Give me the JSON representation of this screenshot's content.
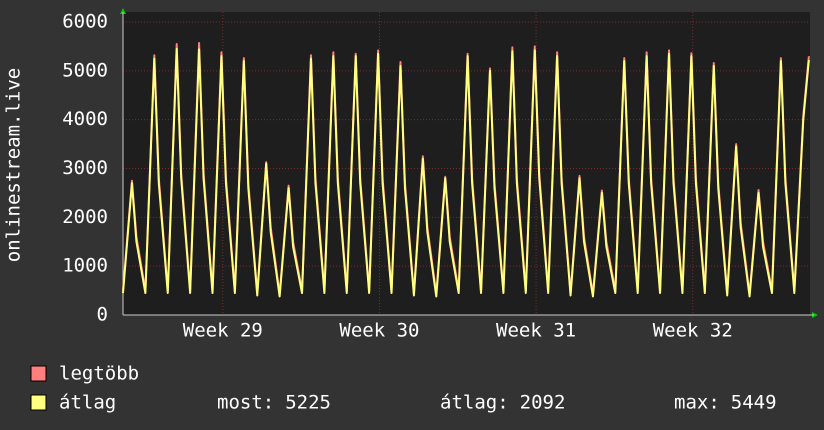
{
  "chart_data": {
    "type": "line",
    "ylabel": "onlinestream.live",
    "x": [
      0,
      0.4,
      0.6,
      1,
      1.4,
      1.6,
      2,
      2.4,
      2.6,
      3,
      3.4,
      3.6,
      4,
      4.4,
      4.6,
      5,
      5.4,
      5.6,
      6,
      6.4,
      6.6,
      7,
      7.4,
      7.6,
      8,
      8.4,
      8.6,
      9,
      9.4,
      9.6,
      10,
      10.4,
      10.6,
      11,
      11.4,
      11.6,
      12,
      12.4,
      12.6,
      13,
      13.4,
      13.6,
      14,
      14.4,
      14.6,
      15,
      15.4,
      15.6,
      16,
      16.4,
      16.6,
      17,
      17.4,
      17.6,
      18,
      18.4,
      18.6,
      19,
      19.4,
      19.6,
      20,
      20.4,
      20.6,
      21,
      21.4,
      21.6,
      22,
      22.4,
      22.6,
      23,
      23.4,
      23.6,
      24,
      24.4,
      24.6,
      25,
      25.4,
      25.6,
      26,
      26.4,
      26.6,
      27,
      27.4,
      27.6,
      28,
      28.4,
      28.6,
      29,
      29.4,
      29.6,
      30,
      30.4,
      30.65
    ],
    "series": [
      {
        "name": "legtöbb",
        "color": "#ff7f7f",
        "values": [
          500,
          2750,
          1600,
          500,
          5320,
          2800,
          500,
          5550,
          2900,
          500,
          5570,
          2900,
          500,
          5380,
          2800,
          500,
          5260,
          2700,
          450,
          3130,
          1800,
          430,
          2650,
          1500,
          500,
          5320,
          2800,
          500,
          5380,
          2800,
          500,
          5350,
          2800,
          500,
          5420,
          2800,
          500,
          5180,
          2700,
          450,
          3250,
          1800,
          430,
          2830,
          1600,
          500,
          5350,
          2800,
          500,
          5050,
          2700,
          500,
          5480,
          2800,
          500,
          5500,
          2900,
          500,
          5380,
          2800,
          450,
          2850,
          1600,
          430,
          2550,
          1500,
          500,
          5260,
          2800,
          500,
          5380,
          2800,
          500,
          5420,
          2800,
          500,
          5360,
          2800,
          500,
          5160,
          2700,
          450,
          3500,
          1900,
          430,
          2560,
          1500,
          500,
          5260,
          2800,
          500,
          4080,
          5300
        ]
      },
      {
        "name": "átlag",
        "color": "#ffff80",
        "values": [
          450,
          2700,
          1500,
          450,
          5250,
          2700,
          450,
          5449,
          2800,
          450,
          5440,
          2800,
          450,
          5300,
          2700,
          450,
          5200,
          2600,
          400,
          3100,
          1700,
          380,
          2600,
          1400,
          450,
          5250,
          2700,
          450,
          5300,
          2700,
          450,
          5300,
          2700,
          450,
          5350,
          2700,
          450,
          5100,
          2600,
          400,
          3200,
          1700,
          380,
          2800,
          1500,
          450,
          5300,
          2700,
          450,
          5000,
          2600,
          450,
          5400,
          2700,
          450,
          5420,
          2800,
          450,
          5300,
          2700,
          400,
          2800,
          1500,
          380,
          2500,
          1400,
          450,
          5200,
          2700,
          450,
          5300,
          2700,
          450,
          5350,
          2700,
          450,
          5300,
          2700,
          450,
          5100,
          2600,
          400,
          3450,
          1800,
          380,
          2500,
          1400,
          450,
          5200,
          2700,
          450,
          4000,
          5225
        ]
      }
    ],
    "xlim": [
      0,
      30.7
    ],
    "xticks": [
      {
        "value": 4.46,
        "label": "Week 29"
      },
      {
        "value": 11.46,
        "label": "Week 30"
      },
      {
        "value": 18.46,
        "label": "Week 31"
      },
      {
        "value": 25.46,
        "label": "Week 32"
      }
    ],
    "ylim": [
      0,
      6000
    ],
    "yticks": [
      0,
      1000,
      2000,
      3000,
      4000,
      5000,
      6000
    ],
    "grid": true,
    "stats": [
      {
        "label": "most:",
        "value": 5225
      },
      {
        "label": "átlag:",
        "value": 2092
      },
      {
        "label": "max:",
        "value": 5449
      }
    ]
  }
}
